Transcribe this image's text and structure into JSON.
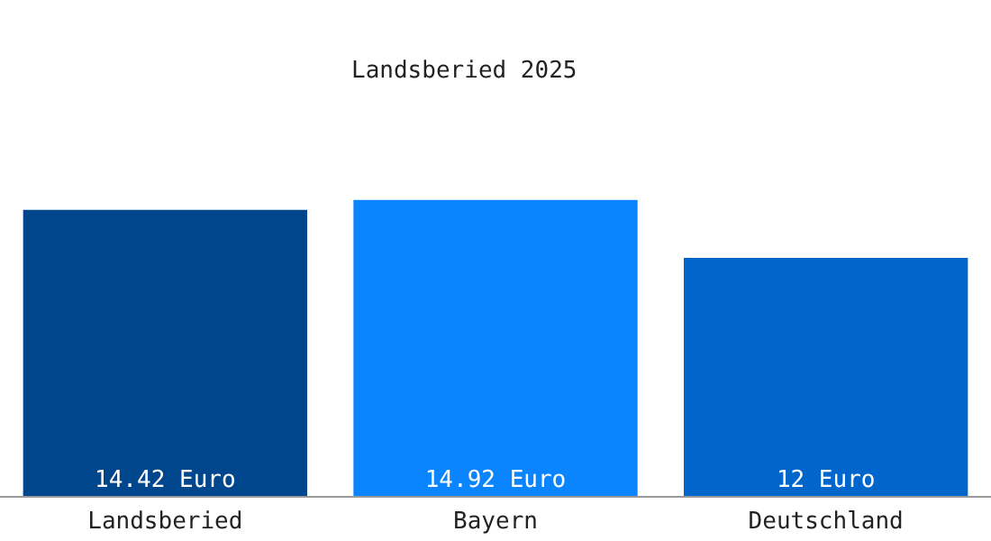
{
  "chart_data": {
    "type": "bar",
    "title": "Landsberied 2025",
    "categories": [
      "Landsberied",
      "Bayern",
      "Deutschland"
    ],
    "values": [
      14.42,
      14.92,
      12
    ],
    "colors": [
      "#00468c",
      "#0a84ff",
      "#0066cc"
    ],
    "value_labels": [
      "14.42 Euro",
      "14.92 Euro",
      "12 Euro"
    ]
  }
}
